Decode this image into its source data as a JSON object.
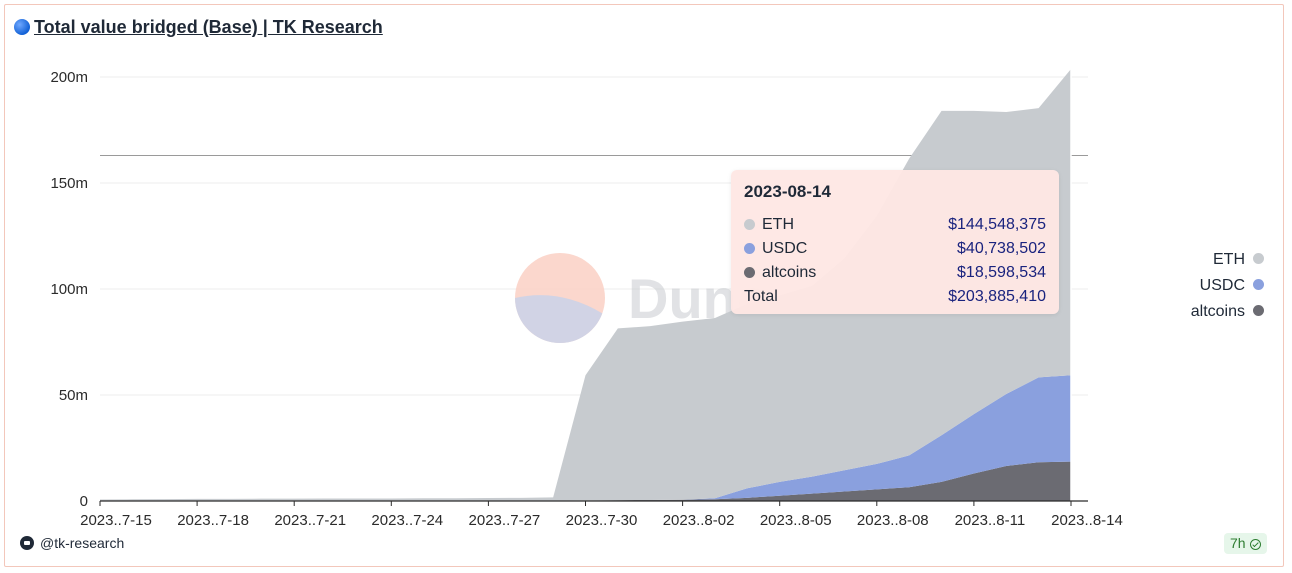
{
  "title": "Total value bridged (Base) | TK Research",
  "watermark": "Dune",
  "footer": {
    "user": "@tk-research",
    "age": "7h"
  },
  "tooltip": {
    "date": "2023-08-14",
    "rows": [
      {
        "name": "ETH",
        "value": "$144,548,375"
      },
      {
        "name": "USDC",
        "value": "$40,738,502"
      },
      {
        "name": "altcoins",
        "value": "$18,598,534"
      },
      {
        "name": "Total",
        "value": "$203,885,410"
      }
    ]
  },
  "colors": {
    "ETH": "#c7cbcf",
    "USDC": "#8aa0de",
    "altcoins": "#6b6b72",
    "accent": "#f3c7bb"
  },
  "chart_data": {
    "type": "area",
    "stacked": true,
    "x_start": "2023-07-15",
    "x_tick_labels": [
      "2023..7-15",
      "2023..7-18",
      "2023..7-21",
      "2023..7-24",
      "2023..7-27",
      "2023..7-30",
      "2023..8-02",
      "2023..8-05",
      "2023..8-08",
      "2023..8-11",
      "2023..8-14"
    ],
    "y_tick_labels": [
      "0",
      "50m",
      "100m",
      "150m",
      "200m"
    ],
    "ylim": [
      0,
      200
    ],
    "y_unit": "m",
    "reference_line": 163,
    "legend_position": "right",
    "x": [
      "2023-07-15",
      "2023-07-16",
      "2023-07-17",
      "2023-07-18",
      "2023-07-19",
      "2023-07-20",
      "2023-07-21",
      "2023-07-22",
      "2023-07-23",
      "2023-07-24",
      "2023-07-25",
      "2023-07-26",
      "2023-07-27",
      "2023-07-28",
      "2023-07-29",
      "2023-07-30",
      "2023-07-31",
      "2023-08-01",
      "2023-08-02",
      "2023-08-03",
      "2023-08-04",
      "2023-08-05",
      "2023-08-06",
      "2023-08-07",
      "2023-08-08",
      "2023-08-09",
      "2023-08-10",
      "2023-08-11",
      "2023-08-12",
      "2023-08-13",
      "2023-08-14"
    ],
    "series": [
      {
        "name": "altcoins",
        "values": [
          0.2,
          0.2,
          0.2,
          0.2,
          0.2,
          0.2,
          0.2,
          0.2,
          0.2,
          0.2,
          0.2,
          0.2,
          0.2,
          0.2,
          0.2,
          0.3,
          0.4,
          0.5,
          0.6,
          0.8,
          1.5,
          2.5,
          3.5,
          4.5,
          5.5,
          6.5,
          9,
          13,
          16.5,
          18.3,
          18.6
        ]
      },
      {
        "name": "USDC",
        "values": [
          0,
          0,
          0,
          0,
          0,
          0,
          0,
          0,
          0,
          0,
          0,
          0,
          0,
          0,
          0,
          0,
          0,
          0,
          0,
          0.5,
          4.5,
          6.5,
          8,
          10,
          12,
          15,
          22,
          28,
          34,
          40,
          40.7
        ]
      },
      {
        "name": "ETH",
        "values": [
          0.5,
          0.6,
          0.7,
          0.8,
          0.8,
          0.9,
          0.9,
          1,
          1,
          1,
          1.1,
          1.1,
          1.2,
          1.3,
          1.5,
          59,
          81,
          82,
          84,
          85,
          87,
          88,
          90,
          100,
          117,
          140,
          153,
          143,
          133,
          127,
          144.5
        ]
      }
    ]
  }
}
